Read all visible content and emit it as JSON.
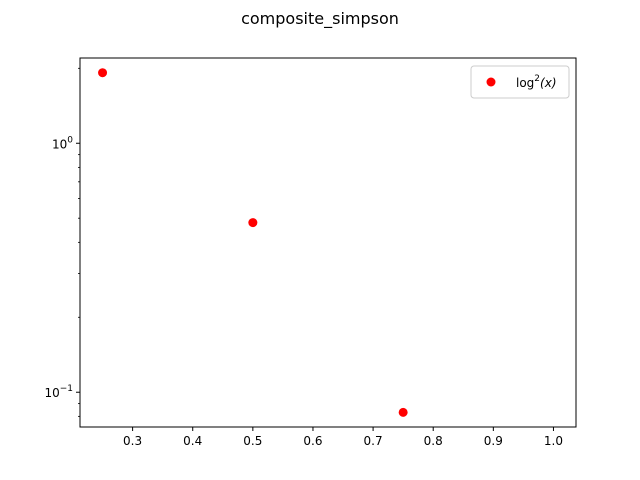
{
  "chart_data": {
    "type": "scatter",
    "title": "composite_simpson",
    "xlabel": "",
    "ylabel": "",
    "x_scale": "linear",
    "y_scale": "log",
    "xlim": [
      0.2125,
      1.0375
    ],
    "ylim": [
      0.0725,
      2.2
    ],
    "x_ticks": [
      0.3,
      0.4,
      0.5,
      0.6,
      0.7,
      0.8,
      0.9,
      1.0
    ],
    "x_tick_labels": [
      "0.3",
      "0.4",
      "0.5",
      "0.6",
      "0.7",
      "0.8",
      "0.9",
      "1.0"
    ],
    "y_major_ticks": [
      0.1,
      1
    ],
    "y_major_tick_labels": [
      {
        "base": "10",
        "exp": "−1"
      },
      {
        "base": "10",
        "exp": "0"
      }
    ],
    "y_minor_ticks": [
      0.08,
      0.09,
      0.2,
      0.3,
      0.4,
      0.5,
      0.6,
      0.7,
      0.8,
      0.9,
      2
    ],
    "grid": false,
    "legend_position": "top-right",
    "series": [
      {
        "name": "log²(x)",
        "legend_label": {
          "fn": "log",
          "exp": "2",
          "arg": "(x)"
        },
        "color": "#ff0000",
        "marker": "circle",
        "x": [
          0.25,
          0.5,
          0.75
        ],
        "y": [
          1.92,
          0.48,
          0.083
        ]
      }
    ]
  }
}
